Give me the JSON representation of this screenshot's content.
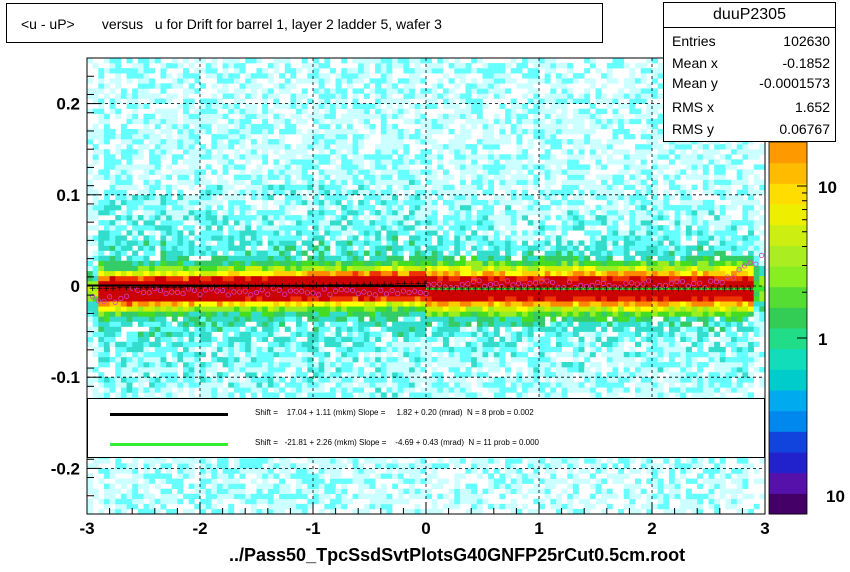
{
  "title": "<u - uP>       versus   u for Drift for barrel 1, layer 2 ladder 5, wafer 3",
  "footer": "../Pass50_TpcSsdSvtPlotsG40GNFP25rCut0.5cm.root",
  "stats": {
    "name": "duuP2305",
    "rows": [
      {
        "key": "Entries",
        "value": "102630"
      },
      {
        "key": "Mean x",
        "value": "-0.1852"
      },
      {
        "key": "Mean y",
        "value": "-0.0001573"
      },
      {
        "key": "RMS x",
        "value": "1.652"
      },
      {
        "key": "RMS y",
        "value": "0.06767"
      }
    ]
  },
  "legend": [
    {
      "text": "Shift =    17.04 + 1.11 (mkm) Slope =     1.82 + 0.20 (mrad)  N = 8 prob = 0.002",
      "color": "#000000"
    },
    {
      "text": "Shift =   -21.81 + 2.26 (mkm) Slope =    -4.69 + 0.43 (mrad)  N = 11 prob = 0.000",
      "color": "#33ee33"
    }
  ],
  "chart_data": {
    "type": "heatmap",
    "xlim": [
      -3,
      3
    ],
    "ylim": [
      -0.25,
      0.25
    ],
    "x_ticks": [
      "-3",
      "-2",
      "-1",
      "0",
      "1",
      "2",
      "3"
    ],
    "y_ticks": [
      "-0.2",
      "-0.1",
      "0",
      "0.1",
      "0.2"
    ],
    "z_scale": "log",
    "z_ticks": [
      "1",
      "10"
    ],
    "grid": true,
    "fits": [
      {
        "x_range": [
          -3,
          0
        ],
        "y0": 0.0,
        "slope": 0.0018
      },
      {
        "x_range": [
          0,
          3
        ],
        "y0": -0.003,
        "slope": 0.0
      }
    ]
  }
}
